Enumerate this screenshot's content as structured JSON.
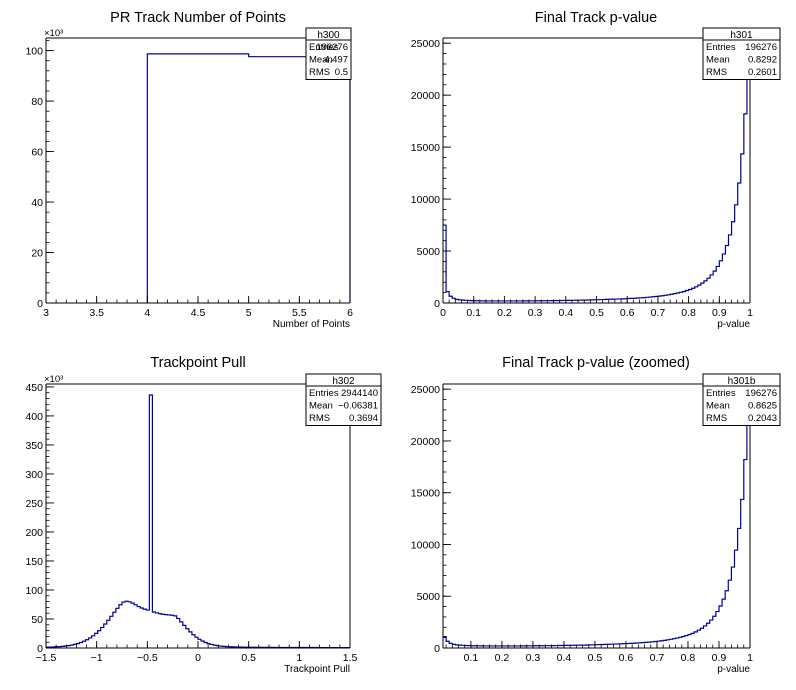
{
  "chart_data": [
    {
      "type": "histogram",
      "title": "PR Track Number of Points",
      "xlabel": "Number of Points",
      "ylabel": "",
      "y_exponent": "×10³",
      "xlim": [
        3,
        6
      ],
      "ylim": [
        0,
        105
      ],
      "x_ticks": [
        "3",
        "3.5",
        "4",
        "4.5",
        "5",
        "5.5",
        "6"
      ],
      "y_ticks": [
        "0",
        "20",
        "40",
        "60",
        "80",
        "100"
      ],
      "bins": [
        {
          "x0": 4,
          "x1": 5,
          "y": 98.7
        },
        {
          "x0": 5,
          "x1": 6,
          "y": 97.6
        }
      ],
      "stats": {
        "name": "h300",
        "rows": [
          [
            "Entries",
            "196276"
          ],
          [
            "Mean",
            "4.497"
          ],
          [
            "RMS",
            "0.5"
          ]
        ]
      }
    },
    {
      "type": "histogram",
      "title": "Final Track p-value",
      "xlabel": "p-value",
      "ylabel": "",
      "xlim": [
        0,
        1
      ],
      "ylim": [
        0,
        25500
      ],
      "x_ticks": [
        "0",
        "0.1",
        "0.2",
        "0.3",
        "0.4",
        "0.5",
        "0.6",
        "0.7",
        "0.8",
        "0.9",
        "1"
      ],
      "y_ticks": [
        "0",
        "5000",
        "10000",
        "15000",
        "20000",
        "25000"
      ],
      "bin_width": 0.01,
      "bin_contents": [
        7500,
        1100,
        650,
        450,
        350,
        300,
        280,
        260,
        240,
        230,
        220,
        215,
        210,
        205,
        200,
        200,
        200,
        200,
        200,
        200,
        200,
        200,
        200,
        200,
        200,
        200,
        205,
        205,
        210,
        210,
        215,
        215,
        220,
        220,
        225,
        225,
        230,
        235,
        240,
        245,
        250,
        255,
        260,
        265,
        270,
        275,
        280,
        290,
        300,
        310,
        320,
        330,
        340,
        350,
        360,
        370,
        380,
        390,
        400,
        415,
        430,
        445,
        460,
        480,
        500,
        520,
        545,
        570,
        600,
        630,
        660,
        700,
        740,
        790,
        840,
        900,
        960,
        1030,
        1110,
        1200,
        1300,
        1420,
        1560,
        1720,
        1910,
        2130,
        2390,
        2700,
        3070,
        3520,
        4060,
        4720,
        5530,
        6550,
        7820,
        9450,
        11550,
        14350,
        18200,
        23500
      ],
      "stats": {
        "name": "h301",
        "rows": [
          [
            "Entries",
            "196276"
          ],
          [
            "Mean",
            "0.8292"
          ],
          [
            "RMS",
            "0.2601"
          ]
        ]
      }
    },
    {
      "type": "histogram",
      "title": "Trackpoint Pull",
      "xlabel": "Trackpoint Pull",
      "ylabel": "",
      "y_exponent": "×10³",
      "xlim": [
        -1.5,
        1.5
      ],
      "ylim": [
        0,
        455
      ],
      "x_ticks": [
        "−1.5",
        "−1",
        "−0.5",
        "0",
        "0.5",
        "1",
        "1.5"
      ],
      "y_ticks": [
        "0",
        "50",
        "100",
        "150",
        "200",
        "250",
        "300",
        "350",
        "400",
        "450"
      ],
      "bin_width": 0.03,
      "bin_contents": [
        1.5,
        1.6,
        1.8,
        2.1,
        2.4,
        2.8,
        3.4,
        4.1,
        5.0,
        6.2,
        7.6,
        9.4,
        11.6,
        14.2,
        17.3,
        21.0,
        25.2,
        30.0,
        35.4,
        41.3,
        47.8,
        54.6,
        61.6,
        68.4,
        74.6,
        79.2,
        80.6,
        79.6,
        77.4,
        74.4,
        71.4,
        69.0,
        67.0,
        65.4,
        436,
        62.0,
        60.4,
        59.2,
        58.2,
        57.5,
        57.0,
        56.4,
        55.4,
        50.8,
        45.0,
        39.0,
        33.2,
        27.8,
        22.9,
        18.6,
        15.0,
        12.0,
        9.5,
        7.6,
        6.1,
        4.9,
        4.0,
        3.3,
        2.8,
        2.4,
        2.1,
        1.9,
        1.7,
        1.6,
        1.5,
        1.4,
        1.4,
        1.3,
        1.3,
        1.2,
        1.2,
        1.2,
        1.1,
        1.1,
        1.1,
        1.0,
        1.0,
        1.0,
        1.0,
        0.9,
        0.9,
        0.9,
        0.9,
        0.9,
        0.8,
        0.8,
        0.8,
        0.8,
        0.8,
        0.8,
        0.7,
        0.7,
        0.7,
        0.7,
        0.7,
        0.7,
        0.7,
        0.7,
        0.7,
        0.7
      ],
      "stats": {
        "name": "h302",
        "rows": [
          [
            "Entries",
            "2944140"
          ],
          [
            "Mean",
            "−0.06381"
          ],
          [
            "RMS",
            "0.3694"
          ]
        ]
      }
    },
    {
      "type": "histogram",
      "title": "Final Track p-value (zoomed)",
      "xlabel": "p-value",
      "ylabel": "",
      "xlim": [
        0.01,
        1
      ],
      "ylim": [
        0,
        25500
      ],
      "x_ticks": [
        "0.1",
        "0.2",
        "0.3",
        "0.4",
        "0.5",
        "0.6",
        "0.7",
        "0.8",
        "0.9",
        "1"
      ],
      "y_ticks": [
        "0",
        "5000",
        "10000",
        "15000",
        "20000",
        "25000"
      ],
      "bin_width": 0.01,
      "bin_contents": [
        1100,
        650,
        450,
        350,
        300,
        280,
        260,
        240,
        230,
        220,
        215,
        210,
        205,
        200,
        200,
        200,
        200,
        200,
        200,
        200,
        200,
        200,
        200,
        200,
        200,
        205,
        205,
        210,
        210,
        215,
        215,
        220,
        220,
        225,
        225,
        230,
        235,
        240,
        245,
        250,
        255,
        260,
        265,
        270,
        275,
        280,
        290,
        300,
        310,
        320,
        330,
        340,
        350,
        360,
        370,
        380,
        390,
        400,
        415,
        430,
        445,
        460,
        480,
        500,
        520,
        545,
        570,
        600,
        630,
        660,
        700,
        740,
        790,
        840,
        900,
        960,
        1030,
        1110,
        1200,
        1300,
        1420,
        1560,
        1720,
        1910,
        2130,
        2390,
        2700,
        3070,
        3520,
        4060,
        4720,
        5530,
        6550,
        7820,
        9450,
        11550,
        14350,
        18200,
        23500
      ],
      "stats": {
        "name": "h301b",
        "rows": [
          [
            "Entries",
            "196276"
          ],
          [
            "Mean",
            "0.8625"
          ],
          [
            "RMS",
            "0.2043"
          ]
        ]
      }
    }
  ],
  "colors": {
    "line": "#00009c",
    "axis": "#000000",
    "background": "#ffffff"
  }
}
